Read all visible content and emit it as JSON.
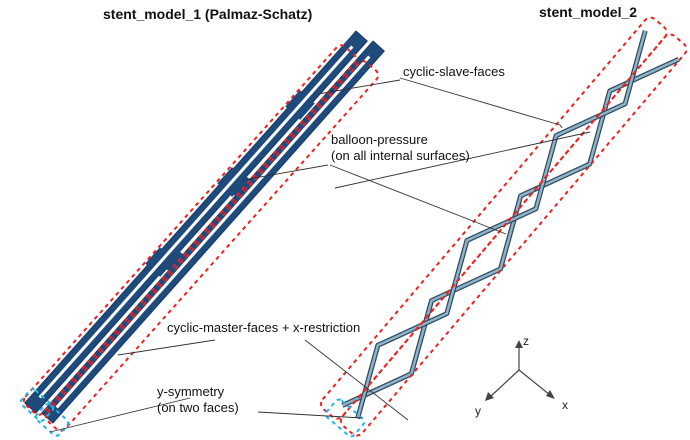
{
  "titles": {
    "model1": "stent_model_1 (Palmaz-Schatz)",
    "model2": "stent_model_2"
  },
  "labels": {
    "slave": "cyclic-slave-faces",
    "balloon_1": "balloon-pressure",
    "balloon_2": "(on all internal surfaces)",
    "master": "cyclic-master-faces + x-restriction",
    "ysym_1": "y-symmetry",
    "ysym_2": "(on two faces)"
  },
  "axes": {
    "z": "z",
    "x": "x",
    "y": "y"
  },
  "colors": {
    "stent1": "#1f4a7c",
    "stent2": "#4a6d85",
    "red_box": "#ee2222",
    "blue_box": "#22b5e8",
    "leader": "#333333"
  }
}
